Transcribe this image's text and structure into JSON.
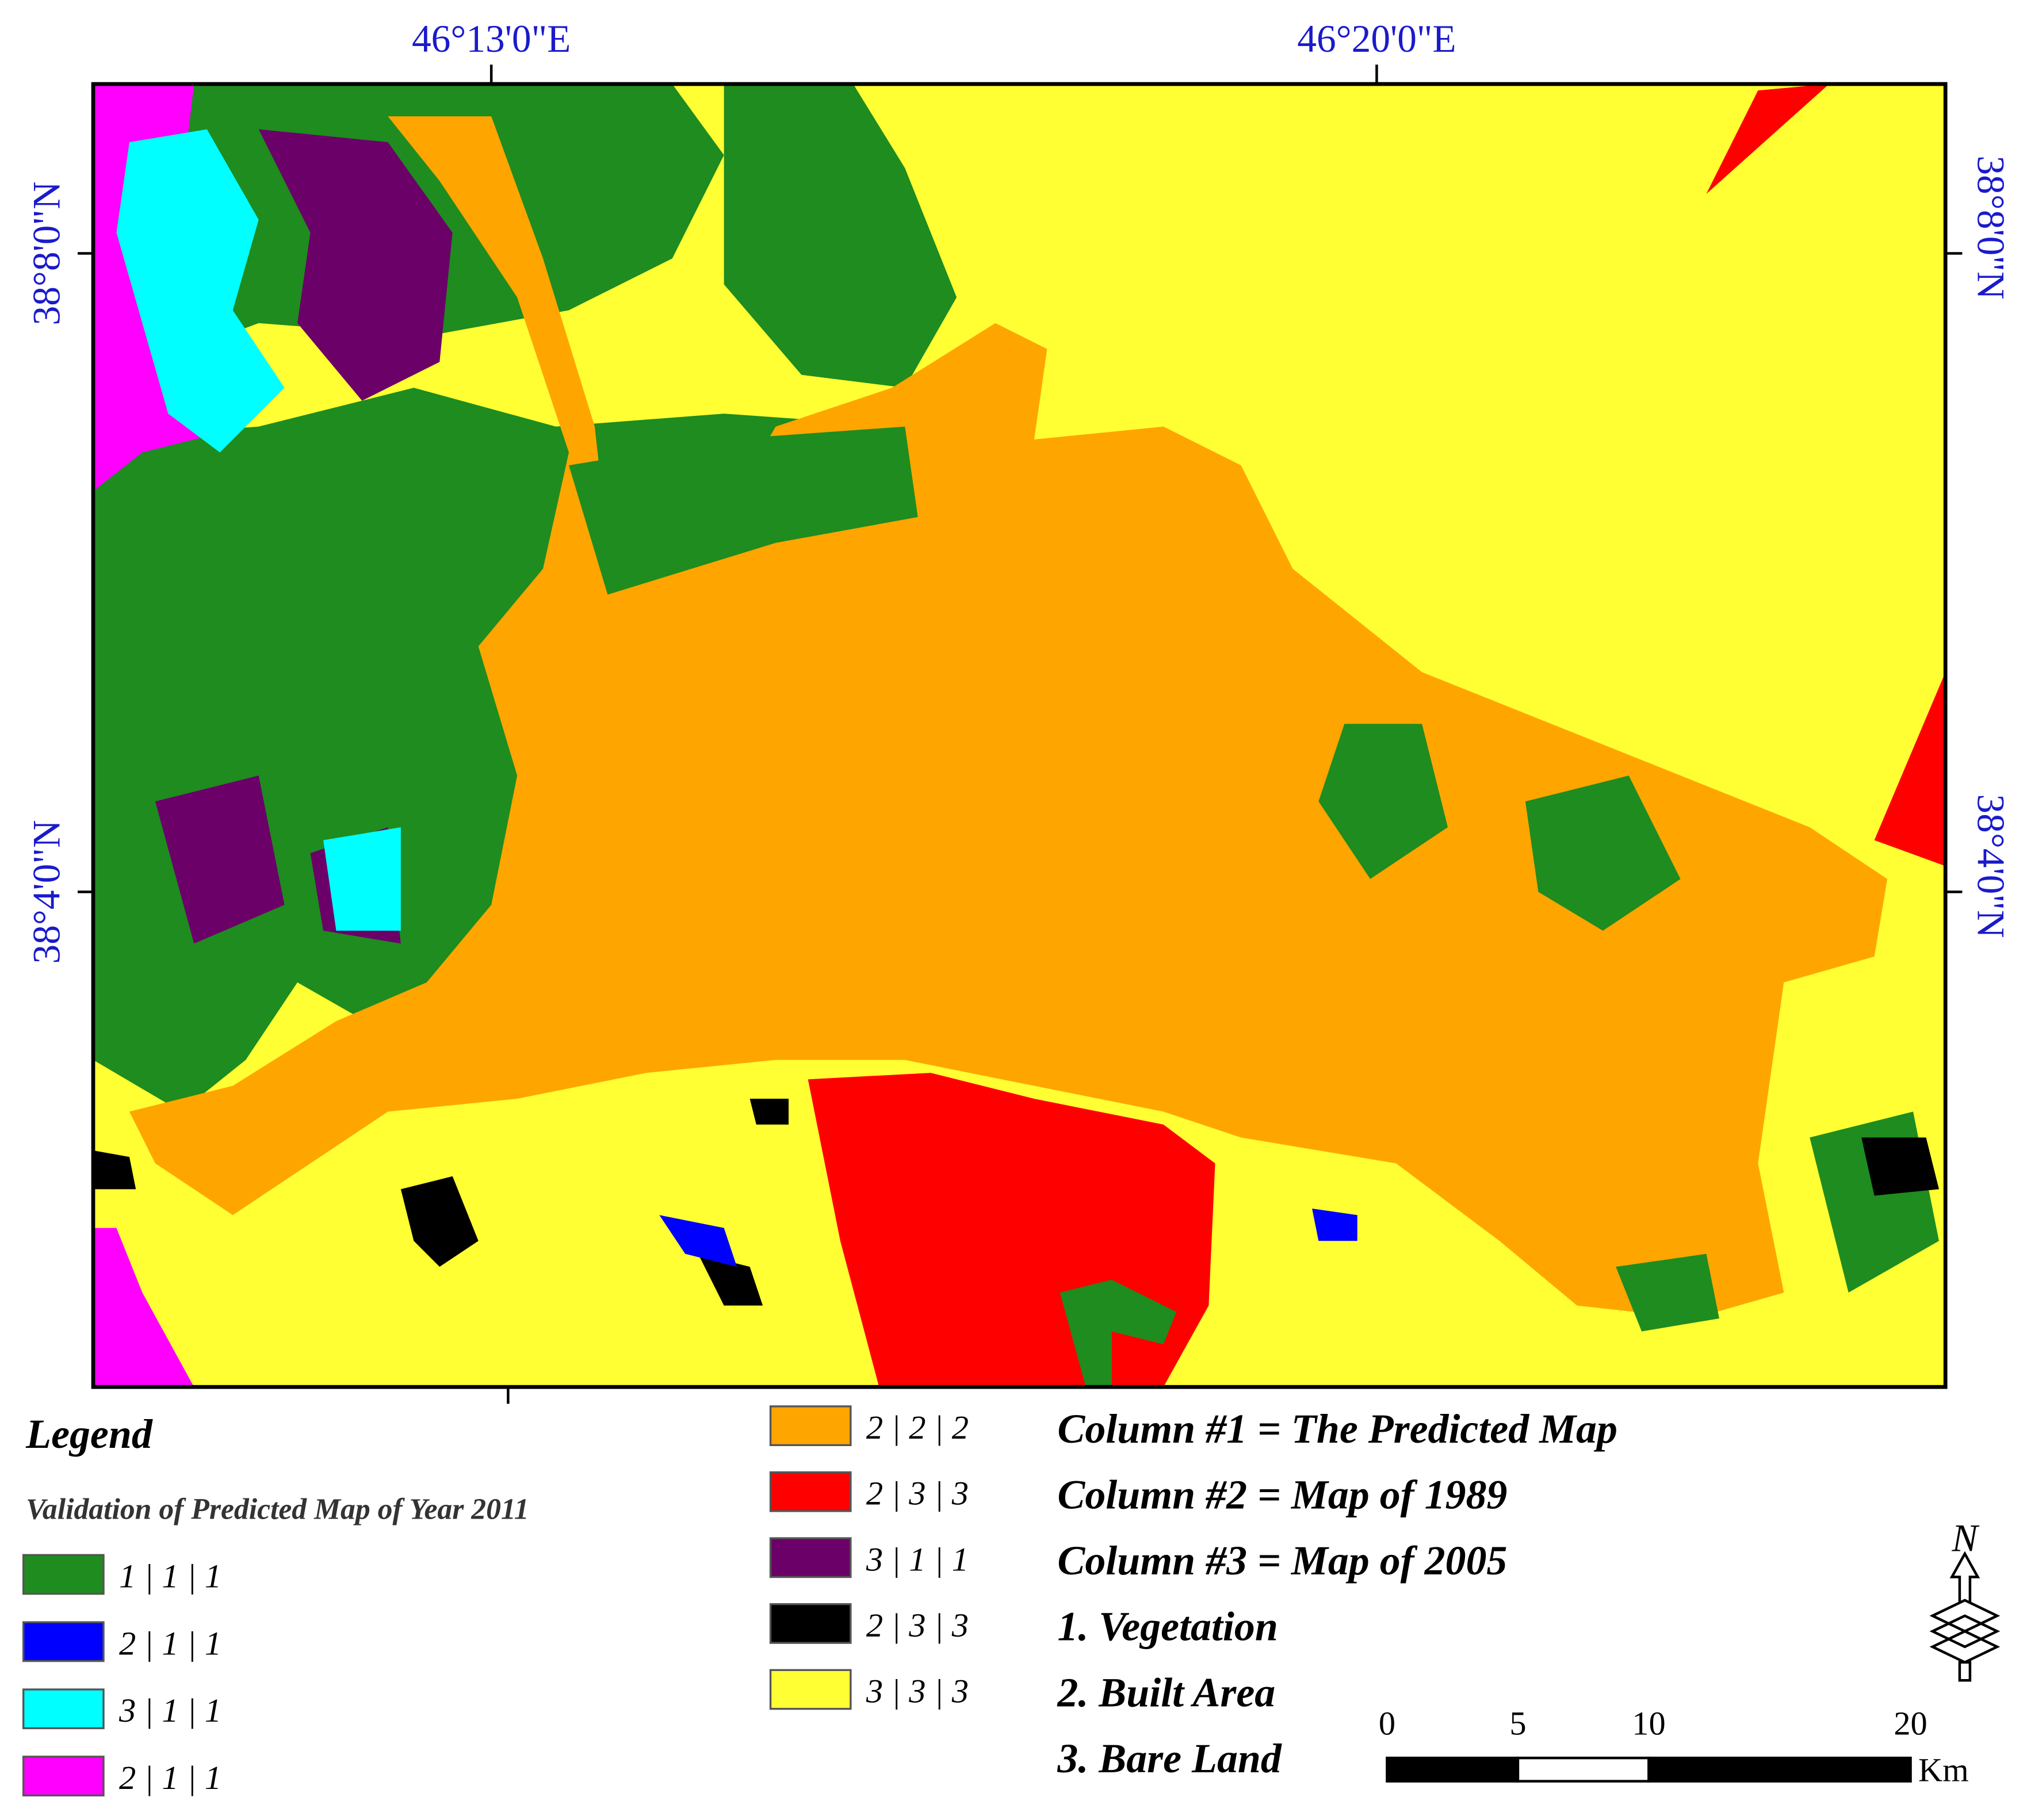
{
  "map": {
    "x_labels": [
      "46°13'0\"E",
      "46°20'0\"E"
    ],
    "y_labels": [
      "38°8'0\"N",
      "38°4'0\"N"
    ]
  },
  "legend": {
    "title": "Legend",
    "subtitle": "Validation of Predicted Map of Year 2011",
    "items": [
      {
        "code": "1 | 1 | 1",
        "color": "#1e8c1e"
      },
      {
        "code": "2 | 1 | 1",
        "color": "#0000ff"
      },
      {
        "code": "3 | 1 | 1",
        "color": "#00ffff"
      },
      {
        "code": "2 | 1 | 1",
        "color": "#ff00ff"
      },
      {
        "code": "2 | 2 | 2",
        "color": "#ffa500"
      },
      {
        "code": "2 | 3 | 3",
        "color": "#ff0000"
      },
      {
        "code": "3 | 1 | 1",
        "color": "#6b0068"
      },
      {
        "code": "2 | 3 | 3",
        "color": "#000000"
      },
      {
        "code": "3 | 3 | 3",
        "color": "#ffff33"
      }
    ]
  },
  "notes": [
    "Column #1 = The Predicted Map",
    "Column #2 =  Map of 1989",
    "Column #3 =  Map of 2005",
    "1. Vegetation",
    "2. Built Area",
    "3. Bare Land"
  ],
  "north": "N",
  "scale_bar": {
    "ticks": [
      0,
      5,
      10,
      20
    ],
    "unit": "Km"
  }
}
